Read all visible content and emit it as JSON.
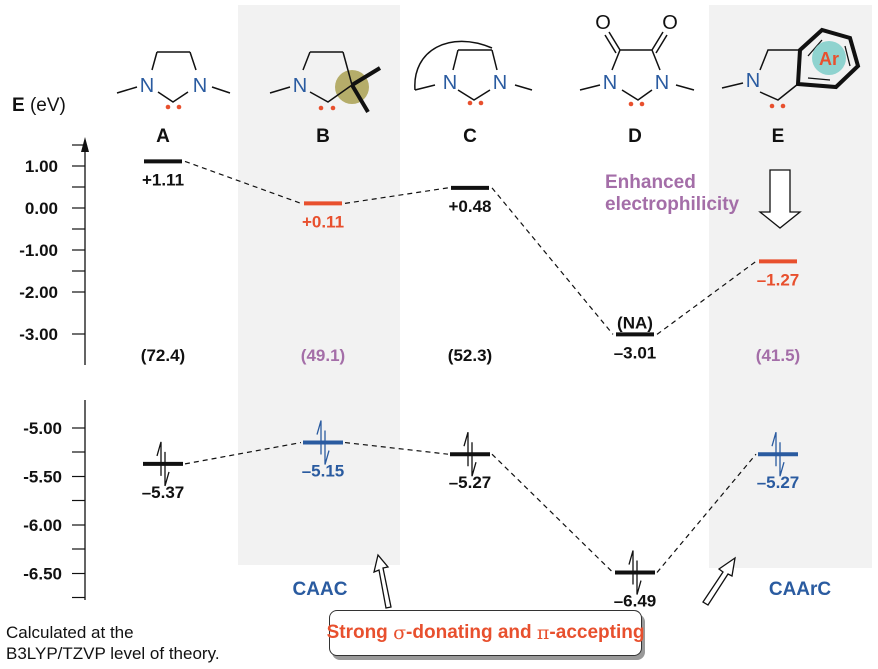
{
  "axis": {
    "label_bold": "E",
    "label_unit": " (eV)",
    "upper_ticks": [
      "1.00",
      "0.00",
      "-1.00",
      "-2.00",
      "-3.00"
    ],
    "lower_ticks": [
      "-5.00",
      "-5.50",
      "-6.00",
      "-6.50"
    ]
  },
  "compounds": [
    {
      "label": "A",
      "lumo": 1.11,
      "lumo_text": "+1.11",
      "homo": -5.37,
      "homo_text": "–5.37",
      "gap": "(72.4)",
      "color": "#111111",
      "gap_color": "#111111",
      "lumo_color": "#111111",
      "homo_color": "#111111"
    },
    {
      "label": "B",
      "lumo": 0.11,
      "lumo_text": "+0.11",
      "homo": -5.15,
      "homo_text": "–5.15",
      "gap": "(49.1)",
      "gap_color": "#a46ea8",
      "lumo_color": "#e8502e",
      "homo_color": "#2a5ba0"
    },
    {
      "label": "C",
      "lumo": 0.48,
      "lumo_text": "+0.48",
      "homo": -5.27,
      "homo_text": "–5.27",
      "gap": "(52.3)",
      "gap_color": "#111111",
      "lumo_color": "#111111",
      "homo_color": "#111111"
    },
    {
      "label": "D",
      "lumo": -3.01,
      "lumo_text": "–3.01",
      "lumo_note": "(NA)",
      "homo": -6.49,
      "homo_text": "–6.49",
      "gap": "",
      "gap_color": "#111111",
      "lumo_color": "#111111",
      "homo_color": "#111111"
    },
    {
      "label": "E",
      "lumo": -1.27,
      "lumo_text": "–1.27",
      "homo": -5.27,
      "homo_text": "–5.27",
      "gap": "(41.5)",
      "gap_color": "#a46ea8",
      "lumo_color": "#e8502e",
      "homo_color": "#2a5ba0"
    }
  ],
  "atoms": {
    "n": "N",
    "o": "O",
    "ar": "Ar"
  },
  "groups": {
    "caac": "CAAC",
    "caarc": "CAArC"
  },
  "annotations": {
    "electrophilicity_1": "Enhanced",
    "electrophilicity_2": "electrophilicity"
  },
  "callout": {
    "pre": "Strong ",
    "sigma": "σ",
    "mid": "-donating and ",
    "pi": "π",
    "post": "-accepting"
  },
  "footnote": {
    "line1": "Calculated at the",
    "line2": "B3LYP/TZVP level of theory."
  },
  "colors": {
    "red": "#e8502e",
    "blue": "#2a5ba0",
    "purple": "#a46ea8",
    "panel": "#f2f2f2",
    "olive": "#b5ad6a",
    "teal": "#8fd3cf"
  }
}
